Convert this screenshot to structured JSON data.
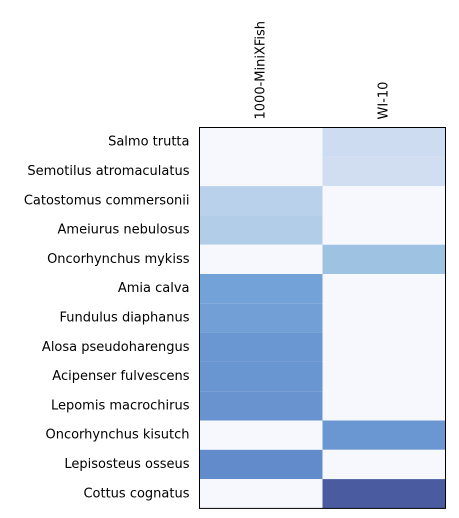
{
  "chart_data": {
    "type": "heatmap",
    "title": "",
    "xlabel": "",
    "ylabel": "",
    "columns": [
      "1000-MiniXFish",
      "WI-10"
    ],
    "rows": [
      "Salmo trutta",
      "Semotilus atromaculatus",
      "Catostomus commersonii",
      "Ameiurus nebulosus",
      "Oncorhynchus mykiss",
      "Amia calva",
      "Fundulus diaphanus",
      "Alosa pseudoharengus",
      "Acipenser fulvescens",
      "Lepomis macrochirus",
      "Oncorhynchus kisutch",
      "Lepisosteus osseus",
      "Cottus cognatus"
    ],
    "values": [
      [
        0.0,
        0.17
      ],
      [
        0.0,
        0.16
      ],
      [
        0.25,
        0.0
      ],
      [
        0.28,
        0.0
      ],
      [
        0.0,
        0.35
      ],
      [
        0.52,
        0.0
      ],
      [
        0.55,
        0.0
      ],
      [
        0.62,
        0.0
      ],
      [
        0.63,
        0.0
      ],
      [
        0.64,
        0.0
      ],
      [
        0.0,
        0.62
      ],
      [
        0.7,
        0.0
      ],
      [
        0.0,
        0.93
      ]
    ],
    "colormap": [
      "#f7f8fd",
      "#cfdcf1",
      "#a3c6e3",
      "#75a5da",
      "#6690cd",
      "#5475c3",
      "#424987"
    ],
    "grid": false,
    "legend": "none"
  }
}
